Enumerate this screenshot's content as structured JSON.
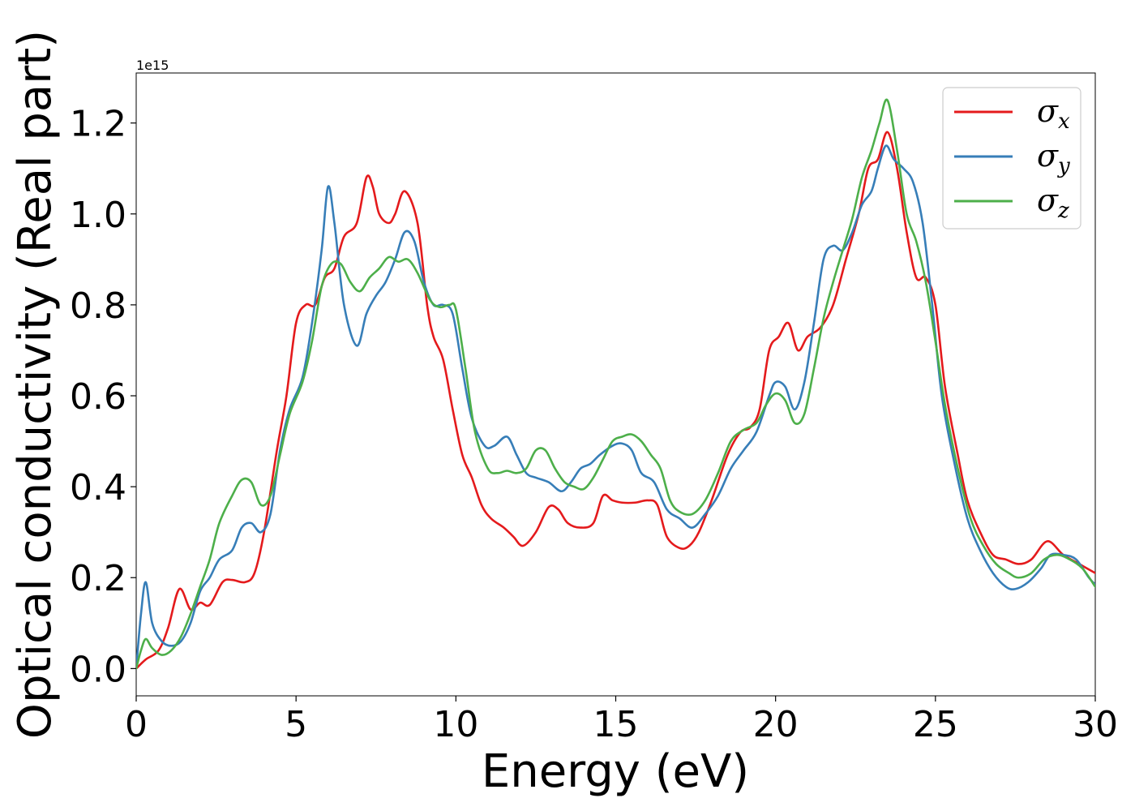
{
  "chart_data": {
    "type": "line",
    "title": "",
    "xlabel": "Energy (eV)",
    "ylabel": "Optical conductivity (Real part)",
    "y_offset_text": "1e15",
    "xlim": [
      0,
      30
    ],
    "ylim": [
      -0.06,
      1.31
    ],
    "xticks": [
      0,
      5,
      10,
      15,
      20,
      25,
      30
    ],
    "xtick_labels": [
      "0",
      "5",
      "10",
      "15",
      "20",
      "25",
      "30"
    ],
    "yticks": [
      0.0,
      0.2,
      0.4,
      0.6,
      0.8,
      1.0,
      1.2
    ],
    "ytick_labels": [
      "0.0",
      "0.2",
      "0.4",
      "0.6",
      "0.8",
      "1.0",
      "1.2"
    ],
    "grid": false,
    "legend_position": "top-right",
    "series": [
      {
        "name": "σx",
        "legend": {
          "base": "σ",
          "sub": "x"
        },
        "color": "#e41a1c",
        "points": [
          [
            0,
            0
          ],
          [
            0.3,
            0.02
          ],
          [
            0.7,
            0.04
          ],
          [
            1.0,
            0.09
          ],
          [
            1.35,
            0.175
          ],
          [
            1.7,
            0.13
          ],
          [
            2.0,
            0.145
          ],
          [
            2.3,
            0.14
          ],
          [
            2.7,
            0.19
          ],
          [
            3.0,
            0.195
          ],
          [
            3.4,
            0.19
          ],
          [
            3.7,
            0.21
          ],
          [
            4.0,
            0.3
          ],
          [
            4.4,
            0.48
          ],
          [
            4.7,
            0.6
          ],
          [
            5.0,
            0.76
          ],
          [
            5.3,
            0.8
          ],
          [
            5.6,
            0.8
          ],
          [
            5.9,
            0.86
          ],
          [
            6.2,
            0.88
          ],
          [
            6.5,
            0.95
          ],
          [
            6.9,
            0.98
          ],
          [
            7.2,
            1.08
          ],
          [
            7.4,
            1.06
          ],
          [
            7.6,
            1.0
          ],
          [
            7.9,
            0.98
          ],
          [
            8.1,
            1.0
          ],
          [
            8.4,
            1.05
          ],
          [
            8.8,
            0.98
          ],
          [
            9.1,
            0.8
          ],
          [
            9.3,
            0.73
          ],
          [
            9.6,
            0.68
          ],
          [
            9.9,
            0.57
          ],
          [
            10.2,
            0.47
          ],
          [
            10.5,
            0.42
          ],
          [
            10.8,
            0.36
          ],
          [
            11.1,
            0.33
          ],
          [
            11.5,
            0.31
          ],
          [
            11.8,
            0.29
          ],
          [
            12.1,
            0.27
          ],
          [
            12.5,
            0.3
          ],
          [
            12.9,
            0.355
          ],
          [
            13.2,
            0.35
          ],
          [
            13.5,
            0.32
          ],
          [
            13.9,
            0.31
          ],
          [
            14.3,
            0.32
          ],
          [
            14.6,
            0.38
          ],
          [
            14.9,
            0.37
          ],
          [
            15.2,
            0.365
          ],
          [
            15.6,
            0.365
          ],
          [
            16.0,
            0.37
          ],
          [
            16.3,
            0.36
          ],
          [
            16.6,
            0.29
          ],
          [
            17.0,
            0.265
          ],
          [
            17.3,
            0.27
          ],
          [
            17.6,
            0.3
          ],
          [
            18.0,
            0.37
          ],
          [
            18.5,
            0.47
          ],
          [
            18.9,
            0.52
          ],
          [
            19.2,
            0.53
          ],
          [
            19.5,
            0.57
          ],
          [
            19.8,
            0.7
          ],
          [
            20.1,
            0.73
          ],
          [
            20.4,
            0.76
          ],
          [
            20.7,
            0.7
          ],
          [
            21.0,
            0.73
          ],
          [
            21.4,
            0.75
          ],
          [
            21.8,
            0.8
          ],
          [
            22.2,
            0.9
          ],
          [
            22.6,
            1.0
          ],
          [
            22.9,
            1.1
          ],
          [
            23.2,
            1.12
          ],
          [
            23.5,
            1.18
          ],
          [
            23.8,
            1.1
          ],
          [
            24.1,
            0.96
          ],
          [
            24.4,
            0.86
          ],
          [
            24.7,
            0.86
          ],
          [
            25.0,
            0.8
          ],
          [
            25.3,
            0.62
          ],
          [
            25.7,
            0.47
          ],
          [
            26.0,
            0.37
          ],
          [
            26.4,
            0.3
          ],
          [
            26.8,
            0.25
          ],
          [
            27.2,
            0.24
          ],
          [
            27.6,
            0.23
          ],
          [
            28.0,
            0.24
          ],
          [
            28.5,
            0.28
          ],
          [
            29.0,
            0.25
          ],
          [
            29.5,
            0.23
          ],
          [
            30.0,
            0.21
          ]
        ]
      },
      {
        "name": "σy",
        "legend": {
          "base": "σ",
          "sub": "y"
        },
        "color": "#377eb8",
        "points": [
          [
            0,
            0
          ],
          [
            0.15,
            0.12
          ],
          [
            0.3,
            0.19
          ],
          [
            0.5,
            0.1
          ],
          [
            0.8,
            0.06
          ],
          [
            1.1,
            0.05
          ],
          [
            1.4,
            0.06
          ],
          [
            1.7,
            0.1
          ],
          [
            2.0,
            0.17
          ],
          [
            2.3,
            0.2
          ],
          [
            2.6,
            0.24
          ],
          [
            3.0,
            0.26
          ],
          [
            3.3,
            0.31
          ],
          [
            3.6,
            0.32
          ],
          [
            3.9,
            0.3
          ],
          [
            4.2,
            0.34
          ],
          [
            4.5,
            0.48
          ],
          [
            4.8,
            0.57
          ],
          [
            5.2,
            0.64
          ],
          [
            5.5,
            0.76
          ],
          [
            5.8,
            0.92
          ],
          [
            6.0,
            1.06
          ],
          [
            6.2,
            0.98
          ],
          [
            6.5,
            0.8
          ],
          [
            6.9,
            0.71
          ],
          [
            7.2,
            0.78
          ],
          [
            7.5,
            0.82
          ],
          [
            7.8,
            0.85
          ],
          [
            8.1,
            0.9
          ],
          [
            8.4,
            0.96
          ],
          [
            8.7,
            0.94
          ],
          [
            9.0,
            0.85
          ],
          [
            9.3,
            0.8
          ],
          [
            9.6,
            0.8
          ],
          [
            9.9,
            0.78
          ],
          [
            10.2,
            0.66
          ],
          [
            10.5,
            0.55
          ],
          [
            10.9,
            0.49
          ],
          [
            11.2,
            0.49
          ],
          [
            11.6,
            0.51
          ],
          [
            11.9,
            0.47
          ],
          [
            12.2,
            0.43
          ],
          [
            12.5,
            0.42
          ],
          [
            12.9,
            0.41
          ],
          [
            13.3,
            0.39
          ],
          [
            13.6,
            0.41
          ],
          [
            13.9,
            0.44
          ],
          [
            14.2,
            0.45
          ],
          [
            14.5,
            0.47
          ],
          [
            14.9,
            0.49
          ],
          [
            15.2,
            0.495
          ],
          [
            15.5,
            0.48
          ],
          [
            15.8,
            0.43
          ],
          [
            16.2,
            0.41
          ],
          [
            16.6,
            0.35
          ],
          [
            17.0,
            0.33
          ],
          [
            17.4,
            0.31
          ],
          [
            17.8,
            0.34
          ],
          [
            18.2,
            0.38
          ],
          [
            18.6,
            0.44
          ],
          [
            19.0,
            0.48
          ],
          [
            19.4,
            0.52
          ],
          [
            19.8,
            0.6
          ],
          [
            20.0,
            0.63
          ],
          [
            20.3,
            0.62
          ],
          [
            20.6,
            0.57
          ],
          [
            20.9,
            0.63
          ],
          [
            21.2,
            0.76
          ],
          [
            21.5,
            0.9
          ],
          [
            21.8,
            0.93
          ],
          [
            22.1,
            0.92
          ],
          [
            22.4,
            0.96
          ],
          [
            22.7,
            1.02
          ],
          [
            23.0,
            1.05
          ],
          [
            23.2,
            1.1
          ],
          [
            23.45,
            1.15
          ],
          [
            23.7,
            1.12
          ],
          [
            24.0,
            1.1
          ],
          [
            24.3,
            1.07
          ],
          [
            24.6,
            0.98
          ],
          [
            24.9,
            0.8
          ],
          [
            25.2,
            0.6
          ],
          [
            25.6,
            0.45
          ],
          [
            26.0,
            0.33
          ],
          [
            26.4,
            0.26
          ],
          [
            26.8,
            0.21
          ],
          [
            27.2,
            0.18
          ],
          [
            27.5,
            0.175
          ],
          [
            27.9,
            0.19
          ],
          [
            28.3,
            0.22
          ],
          [
            28.6,
            0.25
          ],
          [
            29.0,
            0.25
          ],
          [
            29.4,
            0.24
          ],
          [
            29.8,
            0.2
          ],
          [
            30.0,
            0.185
          ]
        ]
      },
      {
        "name": "σz",
        "legend": {
          "base": "σ",
          "sub": "z"
        },
        "color": "#4daf4a",
        "points": [
          [
            0,
            0
          ],
          [
            0.15,
            0.04
          ],
          [
            0.3,
            0.065
          ],
          [
            0.5,
            0.045
          ],
          [
            0.8,
            0.03
          ],
          [
            1.1,
            0.04
          ],
          [
            1.4,
            0.07
          ],
          [
            1.7,
            0.12
          ],
          [
            2.0,
            0.18
          ],
          [
            2.3,
            0.24
          ],
          [
            2.6,
            0.32
          ],
          [
            3.0,
            0.38
          ],
          [
            3.3,
            0.415
          ],
          [
            3.6,
            0.41
          ],
          [
            3.9,
            0.36
          ],
          [
            4.2,
            0.38
          ],
          [
            4.5,
            0.47
          ],
          [
            4.8,
            0.56
          ],
          [
            5.2,
            0.63
          ],
          [
            5.5,
            0.72
          ],
          [
            5.8,
            0.84
          ],
          [
            6.1,
            0.89
          ],
          [
            6.4,
            0.89
          ],
          [
            6.7,
            0.85
          ],
          [
            7.0,
            0.83
          ],
          [
            7.3,
            0.86
          ],
          [
            7.6,
            0.88
          ],
          [
            7.9,
            0.905
          ],
          [
            8.2,
            0.895
          ],
          [
            8.5,
            0.9
          ],
          [
            8.8,
            0.87
          ],
          [
            9.2,
            0.81
          ],
          [
            9.5,
            0.795
          ],
          [
            9.8,
            0.8
          ],
          [
            10.0,
            0.79
          ],
          [
            10.3,
            0.66
          ],
          [
            10.6,
            0.52
          ],
          [
            11.0,
            0.44
          ],
          [
            11.3,
            0.43
          ],
          [
            11.6,
            0.435
          ],
          [
            11.9,
            0.43
          ],
          [
            12.2,
            0.44
          ],
          [
            12.5,
            0.48
          ],
          [
            12.8,
            0.48
          ],
          [
            13.1,
            0.44
          ],
          [
            13.4,
            0.41
          ],
          [
            13.7,
            0.4
          ],
          [
            14.0,
            0.395
          ],
          [
            14.3,
            0.42
          ],
          [
            14.6,
            0.46
          ],
          [
            14.9,
            0.5
          ],
          [
            15.2,
            0.51
          ],
          [
            15.5,
            0.515
          ],
          [
            15.8,
            0.5
          ],
          [
            16.1,
            0.47
          ],
          [
            16.4,
            0.44
          ],
          [
            16.7,
            0.37
          ],
          [
            17.0,
            0.345
          ],
          [
            17.4,
            0.34
          ],
          [
            17.8,
            0.37
          ],
          [
            18.2,
            0.43
          ],
          [
            18.6,
            0.5
          ],
          [
            19.0,
            0.525
          ],
          [
            19.4,
            0.54
          ],
          [
            19.7,
            0.58
          ],
          [
            20.0,
            0.605
          ],
          [
            20.3,
            0.59
          ],
          [
            20.6,
            0.54
          ],
          [
            20.9,
            0.56
          ],
          [
            21.2,
            0.66
          ],
          [
            21.5,
            0.77
          ],
          [
            21.8,
            0.85
          ],
          [
            22.1,
            0.92
          ],
          [
            22.4,
            0.99
          ],
          [
            22.7,
            1.08
          ],
          [
            23.0,
            1.14
          ],
          [
            23.25,
            1.2
          ],
          [
            23.5,
            1.25
          ],
          [
            23.8,
            1.14
          ],
          [
            24.1,
            1.0
          ],
          [
            24.4,
            0.94
          ],
          [
            24.7,
            0.85
          ],
          [
            25.0,
            0.72
          ],
          [
            25.3,
            0.58
          ],
          [
            25.7,
            0.44
          ],
          [
            26.1,
            0.33
          ],
          [
            26.5,
            0.27
          ],
          [
            26.9,
            0.23
          ],
          [
            27.3,
            0.21
          ],
          [
            27.6,
            0.2
          ],
          [
            28.0,
            0.21
          ],
          [
            28.4,
            0.24
          ],
          [
            28.8,
            0.25
          ],
          [
            29.2,
            0.24
          ],
          [
            29.6,
            0.22
          ],
          [
            30.0,
            0.18
          ]
        ]
      }
    ]
  }
}
